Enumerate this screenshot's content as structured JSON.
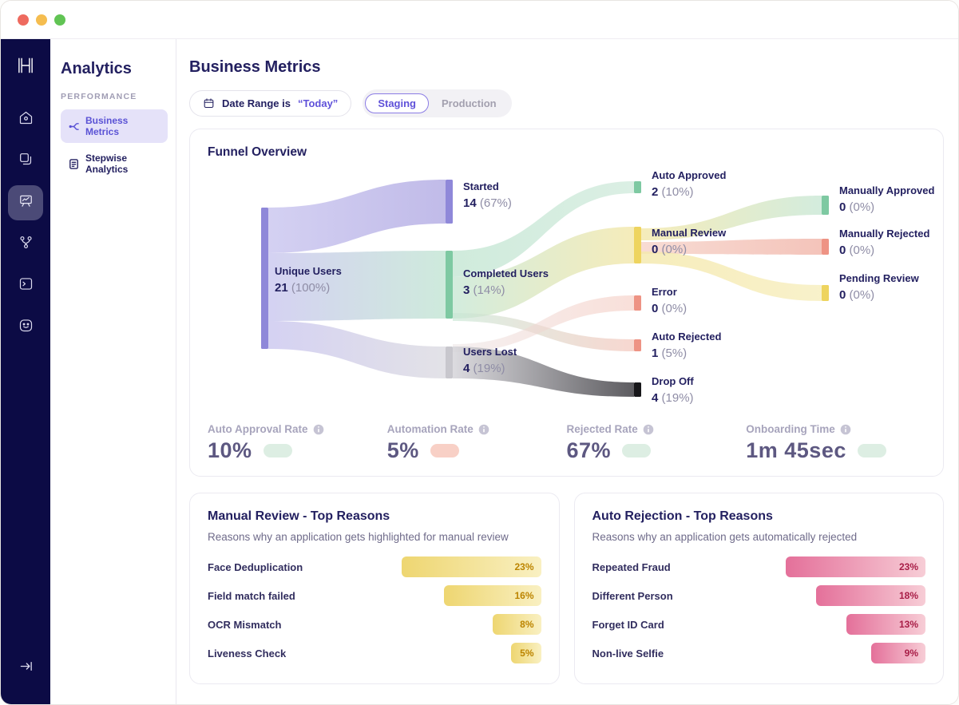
{
  "titlebar": {
    "traffic_lights": [
      "close",
      "minimize",
      "zoom"
    ]
  },
  "rail": {
    "logo": "H",
    "icon_names": [
      "home-icon",
      "pages-icon",
      "analytics-board-icon",
      "branch-icon",
      "terminal-icon",
      "smiley-icon"
    ],
    "active_icon": "analytics-board-icon",
    "collapse_icon_name": "expand-right-icon"
  },
  "sidebar": {
    "title": "Analytics",
    "section_label": "PERFORMANCE",
    "items": [
      {
        "label": "Business Metrics",
        "active": true
      },
      {
        "label": "Stepwise Analytics",
        "active": false
      }
    ]
  },
  "header": {
    "title": "Business Metrics"
  },
  "filters": {
    "date_filter": {
      "label": "Date Range is",
      "value": "“Today”"
    },
    "environment": {
      "options": [
        "Staging",
        "Production"
      ],
      "selected": "Staging"
    }
  },
  "chart_data": [
    {
      "type": "sankey",
      "title": "Funnel Overview",
      "nodes": [
        {
          "name": "Unique Users",
          "value": 21,
          "pct": "100%",
          "color": "#8f88d9"
        },
        {
          "name": "Started",
          "value": 14,
          "pct": "67%",
          "color": "#8f88d9"
        },
        {
          "name": "Completed Users",
          "value": 3,
          "pct": "14%",
          "color": "#7ec9a2"
        },
        {
          "name": "Users Lost",
          "value": 4,
          "pct": "19%",
          "color": "#c8c7cd"
        },
        {
          "name": "Auto Approved",
          "value": 2,
          "pct": "10%",
          "color": "#7ec9a2"
        },
        {
          "name": "Manual Review",
          "value": 0,
          "pct": "0%",
          "color": "#eed45f"
        },
        {
          "name": "Error",
          "value": 0,
          "pct": "0%",
          "color": "#ee9384"
        },
        {
          "name": "Auto Rejected",
          "value": 1,
          "pct": "5%",
          "color": "#ee9384"
        },
        {
          "name": "Drop Off",
          "value": 4,
          "pct": "19%",
          "color": "#17171a"
        },
        {
          "name": "Manually Approved",
          "value": 0,
          "pct": "0%",
          "color": "#7ec9a2"
        },
        {
          "name": "Manually Rejected",
          "value": 0,
          "pct": "0%",
          "color": "#ee9384"
        },
        {
          "name": "Pending Review",
          "value": 0,
          "pct": "0%",
          "color": "#eed45f"
        }
      ],
      "links": [
        {
          "source": "Unique Users",
          "target": "Started",
          "value": 14
        },
        {
          "source": "Unique Users",
          "target": "Completed Users",
          "value": 3
        },
        {
          "source": "Unique Users",
          "target": "Users Lost",
          "value": 4
        },
        {
          "source": "Completed Users",
          "target": "Auto Approved",
          "value": 2
        },
        {
          "source": "Completed Users",
          "target": "Manual Review",
          "value": 0
        },
        {
          "source": "Completed Users",
          "target": "Error",
          "value": 0
        },
        {
          "source": "Completed Users",
          "target": "Auto Rejected",
          "value": 1
        },
        {
          "source": "Users Lost",
          "target": "Drop Off",
          "value": 4
        },
        {
          "source": "Manual Review",
          "target": "Manually Approved",
          "value": 0
        },
        {
          "source": "Manual Review",
          "target": "Manually Rejected",
          "value": 0
        },
        {
          "source": "Manual Review",
          "target": "Pending Review",
          "value": 0
        }
      ]
    },
    {
      "type": "bar",
      "title": "Manual Review - Top Reasons",
      "subtitle": "Reasons why an application gets highlighted for manual review",
      "categories": [
        "Face Deduplication",
        "Field match failed",
        "OCR Mismatch",
        "Liveness Check"
      ],
      "values": [
        23,
        16,
        8,
        5
      ],
      "unit": "%",
      "theme": "yellow"
    },
    {
      "type": "bar",
      "title": "Auto Rejection - Top Reasons",
      "subtitle": "Reasons why an application gets automatically rejected",
      "categories": [
        "Repeated Fraud",
        "Different Person",
        "Forget ID Card",
        "Non-live Selfie"
      ],
      "values": [
        23,
        18,
        13,
        9
      ],
      "unit": "%",
      "theme": "pink"
    }
  ],
  "funnel_metrics": [
    {
      "label": "Auto Approval Rate",
      "value": "10%",
      "pill": "green"
    },
    {
      "label": "Automation Rate",
      "value": "5%",
      "pill": "red"
    },
    {
      "label": "Rejected Rate",
      "value": "67%",
      "pill": "green"
    },
    {
      "label": "Onboarding Time",
      "value": "1m 45sec",
      "pill": "green"
    }
  ],
  "colors": {
    "accent_purple": "#5f51d9",
    "navy_text": "#232060",
    "rail_bg": "#0c0b45",
    "pill_green": "#ddeee3",
    "pill_red": "#f8d0c6",
    "bar_yellow": "#eed671",
    "bar_pink": "#e4709a"
  }
}
